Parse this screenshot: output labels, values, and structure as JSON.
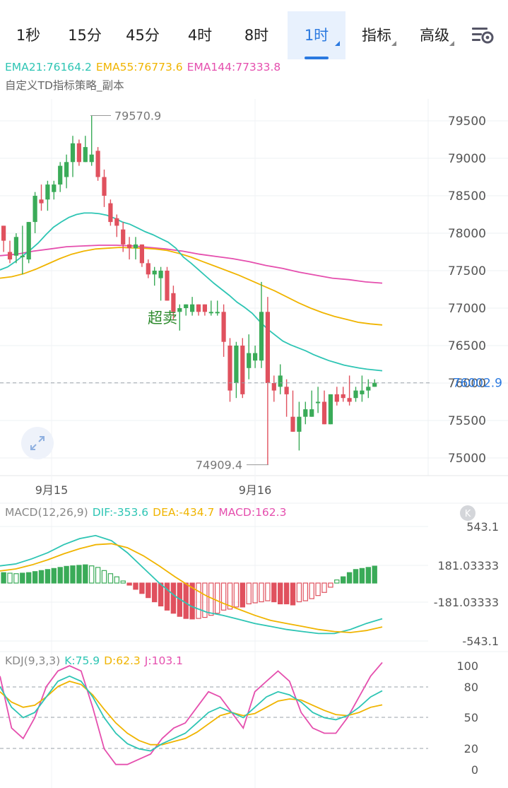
{
  "tabs": [
    {
      "label": "1秒"
    },
    {
      "label": "15分"
    },
    {
      "label": "45分"
    },
    {
      "label": "4时"
    },
    {
      "label": "8时"
    },
    {
      "label": "1时",
      "active": true
    },
    {
      "label": "指标"
    },
    {
      "label": "高级"
    }
  ],
  "settings_icon": "chart-settings-icon",
  "legend": {
    "ema21": "EMA21:76164.2",
    "ema55": "EMA55:76773.6",
    "ema144": "EMA144:77333.8",
    "strategy": "自定义TD指标策略_副本"
  },
  "colors": {
    "up": "#3aab58",
    "down": "#e0515e",
    "ema21": "#2ec5b4",
    "ema55": "#f0b400",
    "ema144": "#e54fae",
    "active_tab": "#2a79e0",
    "label_green": "#2e8b2e"
  },
  "main_chart": {
    "y_labels": [
      "79500",
      "79000",
      "78500",
      "78000",
      "77500",
      "77000",
      "76500",
      "76000",
      "75500",
      "75000"
    ],
    "current_price": "76002.9",
    "high_label": "79570.9",
    "low_label": "74909.4",
    "signal_label": "超卖",
    "x_labels": [
      "9月15",
      "9月16"
    ]
  },
  "macd": {
    "legend_title": "MACD(12,26,9)",
    "dif": "DIF:-353.6",
    "dea": "DEA:-434.7",
    "macd": "MACD:162.3",
    "axis_labels": [
      "543.1",
      "181.03333",
      "-181.03333",
      "-543.1"
    ],
    "badge": "K"
  },
  "kdj": {
    "legend_title": "KDJ(9,3,3)",
    "k": "K:75.9",
    "d": "D:62.3",
    "j": "J:103.1",
    "axis_labels": [
      "100",
      "80",
      "50",
      "20",
      "0"
    ]
  },
  "chart_data": {
    "type": "candlestick",
    "series": [
      {
        "name": "OHLC",
        "values": [
          [
            78100,
            78100,
            77750,
            77900
          ],
          [
            77750,
            77900,
            77600,
            77650
          ],
          [
            77700,
            78000,
            77600,
            77950
          ],
          [
            77700,
            78100,
            77450,
            77700
          ],
          [
            77650,
            78150,
            77600,
            78150
          ],
          [
            78150,
            78550,
            78000,
            78500
          ],
          [
            78450,
            78650,
            78300,
            78400
          ],
          [
            78450,
            78700,
            78300,
            78650
          ],
          [
            78550,
            78700,
            78450,
            78650
          ],
          [
            78650,
            78950,
            78550,
            78900
          ],
          [
            78750,
            79050,
            78600,
            78950
          ],
          [
            78950,
            79300,
            78750,
            79200
          ],
          [
            79200,
            79250,
            78900,
            78950
          ],
          [
            78950,
            79300,
            78950,
            79150
          ],
          [
            78950,
            79570.9,
            78900,
            79050
          ],
          [
            79100,
            79150,
            78700,
            78750
          ],
          [
            78750,
            78850,
            78350,
            78500
          ],
          [
            78400,
            78450,
            78100,
            78150
          ],
          [
            78200,
            78250,
            77950,
            78100
          ],
          [
            78050,
            78150,
            77750,
            77850
          ],
          [
            77850,
            77950,
            77650,
            77800
          ],
          [
            77800,
            77950,
            77650,
            77850
          ],
          [
            77850,
            77850,
            77550,
            77600
          ],
          [
            77600,
            77650,
            77400,
            77450
          ],
          [
            77450,
            77550,
            77300,
            77500
          ],
          [
            77400,
            77550,
            77100,
            77500
          ],
          [
            77500,
            77550,
            77100,
            77100
          ],
          [
            77200,
            77300,
            76850,
            76950
          ],
          [
            76950,
            77050,
            76700,
            77000
          ],
          [
            77000,
            77050,
            76900,
            77050
          ],
          [
            76950,
            77150,
            76900,
            77050
          ],
          [
            77050,
            77050,
            76900,
            76950
          ],
          [
            77050,
            77050,
            76900,
            76950
          ],
          [
            76950,
            77100,
            76900,
            76950
          ],
          [
            76950,
            77100,
            76900,
            76950
          ],
          [
            76950,
            77050,
            76350,
            76550
          ],
          [
            76500,
            76600,
            75750,
            75900
          ],
          [
            76000,
            76550,
            75800,
            76500
          ],
          [
            76500,
            76600,
            75800,
            75850
          ],
          [
            76200,
            76650,
            76050,
            76400
          ],
          [
            76300,
            76500,
            76200,
            76400
          ],
          [
            76300,
            77350,
            76200,
            76950
          ],
          [
            76950,
            77150,
            74909.4,
            76000
          ],
          [
            76000,
            76100,
            75750,
            75900
          ],
          [
            75950,
            76250,
            75850,
            76100
          ],
          [
            75950,
            76050,
            75550,
            75850
          ],
          [
            75550,
            75900,
            75350,
            75350
          ],
          [
            75350,
            75750,
            75100,
            75550
          ],
          [
            75550,
            75750,
            75450,
            75650
          ],
          [
            75550,
            75900,
            75550,
            75650
          ],
          [
            75750,
            75950,
            75600,
            75750
          ],
          [
            75750,
            75900,
            75450,
            75450
          ],
          [
            75450,
            75850,
            75450,
            75850
          ],
          [
            75850,
            75950,
            75700,
            75750
          ],
          [
            75850,
            75950,
            75750,
            75800
          ],
          [
            75800,
            76100,
            75700,
            75750
          ],
          [
            75800,
            75950,
            75750,
            75900
          ],
          [
            75850,
            76100,
            75750,
            75900
          ],
          [
            75900,
            76050,
            75800,
            75950
          ],
          [
            75950,
            76050,
            75950,
            76003
          ]
        ]
      },
      {
        "name": "EMA21",
        "values": [
          77510,
          77550,
          77620,
          77700,
          77780,
          77870,
          77980,
          78080,
          78150,
          78210,
          78250,
          78270,
          78270,
          78260,
          78240,
          78200,
          78150,
          78120,
          78070,
          78020,
          77980,
          77930,
          77880,
          77800,
          77680,
          77600,
          77510,
          77420,
          77330,
          77250,
          77170,
          77080,
          77010,
          76930,
          76820,
          76720,
          76640,
          76560,
          76510,
          76470,
          76430,
          76380,
          76340,
          76300,
          76270,
          76240,
          76220,
          76200,
          76185,
          76175,
          76164
        ]
      },
      {
        "name": "EMA55",
        "values": [
          77400,
          77420,
          77460,
          77520,
          77590,
          77660,
          77720,
          77760,
          77790,
          77800,
          77810,
          77805,
          77800,
          77790,
          77770,
          77730,
          77680,
          77620,
          77560,
          77500,
          77440,
          77370,
          77300,
          77230,
          77150,
          77070,
          77000,
          76940,
          76890,
          76850,
          76810,
          76790,
          76775
        ]
      },
      {
        "name": "EMA144",
        "values": [
          77700,
          77720,
          77760,
          77790,
          77820,
          77830,
          77840,
          77840,
          77830,
          77810,
          77790,
          77760,
          77720,
          77690,
          77660,
          77620,
          77570,
          77530,
          77480,
          77440,
          77400,
          77380,
          77350,
          77334
        ]
      }
    ],
    "macd_hist": [
      100,
      95,
      90,
      95,
      100,
      110,
      120,
      130,
      140,
      150,
      160,
      165,
      170,
      175,
      165,
      150,
      120,
      90,
      60,
      20,
      -20,
      -60,
      -100,
      -140,
      -180,
      -220,
      -260,
      -290,
      -320,
      -340,
      -345,
      -340,
      -330,
      -310,
      -290,
      -260,
      -250,
      -230,
      -230,
      -200,
      -190,
      -180,
      -170,
      -180,
      -200,
      -200,
      -210,
      -180,
      -170,
      -150,
      -120,
      -90,
      -40,
      30,
      60,
      100,
      130,
      140,
      150,
      162.3
    ],
    "kdj_k": [
      80,
      60,
      50,
      55,
      70,
      85,
      90,
      85,
      70,
      50,
      35,
      25,
      20,
      18,
      25,
      30,
      35,
      45,
      55,
      60,
      55,
      50,
      60,
      70,
      75,
      72,
      65,
      55,
      50,
      48,
      52,
      60,
      70,
      75.9
    ],
    "kdj_d": [
      75,
      65,
      60,
      62,
      70,
      80,
      85,
      82,
      72,
      58,
      45,
      35,
      28,
      24,
      24,
      27,
      30,
      36,
      44,
      52,
      55,
      52,
      54,
      60,
      66,
      68,
      67,
      62,
      57,
      53,
      52,
      55,
      60,
      62.3
    ],
    "kdj_j": [
      90,
      40,
      30,
      50,
      80,
      95,
      100,
      95,
      60,
      20,
      5,
      5,
      10,
      15,
      30,
      40,
      45,
      60,
      75,
      70,
      55,
      40,
      75,
      85,
      95,
      85,
      55,
      40,
      35,
      35,
      50,
      70,
      90,
      103.1
    ],
    "main_y_range": [
      74909.4,
      79570.9
    ],
    "macd_y_range": [
      -543.1,
      543.1
    ],
    "kdj_y_range": [
      0,
      100
    ],
    "x_ticks": [
      "9月15",
      "9月16"
    ]
  }
}
